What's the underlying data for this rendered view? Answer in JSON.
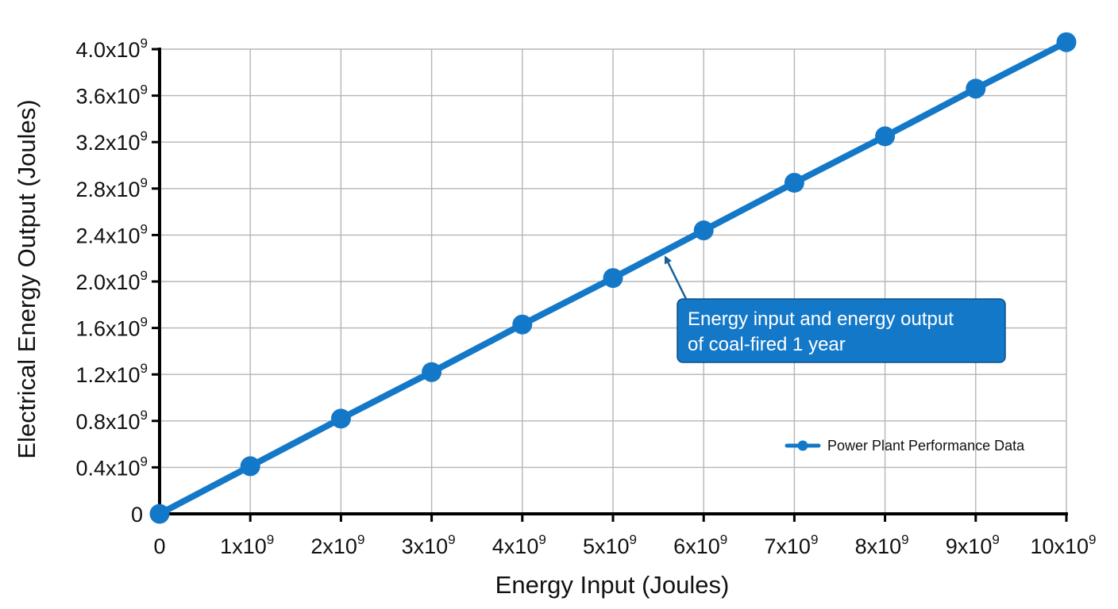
{
  "chart_data": {
    "type": "line",
    "xlabel": "Energy Input (Joules)",
    "ylabel": "Electrical Energy Output (Joules)",
    "xlim": [
      0,
      10000000000
    ],
    "ylim": [
      0,
      4000000000
    ],
    "grid": true,
    "legend_position": "bottom-right",
    "x_ticks": [
      {
        "value": 0,
        "base": "0",
        "exp": ""
      },
      {
        "value": 1000000000,
        "base": "1x10",
        "exp": "9"
      },
      {
        "value": 2000000000,
        "base": "2x10",
        "exp": "9"
      },
      {
        "value": 3000000000,
        "base": "3x10",
        "exp": "9"
      },
      {
        "value": 4000000000,
        "base": "4x10",
        "exp": "9"
      },
      {
        "value": 5000000000,
        "base": "5x10",
        "exp": "9"
      },
      {
        "value": 6000000000,
        "base": "6x10",
        "exp": "9"
      },
      {
        "value": 7000000000,
        "base": "7x10",
        "exp": "9"
      },
      {
        "value": 8000000000,
        "base": "8x10",
        "exp": "9"
      },
      {
        "value": 9000000000,
        "base": "9x10",
        "exp": "9"
      },
      {
        "value": 10000000000,
        "base": "10x10",
        "exp": "9"
      }
    ],
    "y_ticks": [
      {
        "value": 0,
        "base": "0",
        "exp": ""
      },
      {
        "value": 400000000,
        "base": "0.4x10",
        "exp": "9"
      },
      {
        "value": 800000000,
        "base": "0.8x10",
        "exp": "9"
      },
      {
        "value": 1200000000,
        "base": "1.2x10",
        "exp": "9"
      },
      {
        "value": 1600000000,
        "base": "1.6x10",
        "exp": "9"
      },
      {
        "value": 2000000000,
        "base": "2.0x10",
        "exp": "9"
      },
      {
        "value": 2400000000,
        "base": "2.4x10",
        "exp": "9"
      },
      {
        "value": 2800000000,
        "base": "2.8x10",
        "exp": "9"
      },
      {
        "value": 3200000000,
        "base": "3.2x10",
        "exp": "9"
      },
      {
        "value": 3600000000,
        "base": "3.6x10",
        "exp": "9"
      },
      {
        "value": 4000000000,
        "base": "4.0x10",
        "exp": "9"
      }
    ],
    "series": [
      {
        "name": "Power Plant Performance Data",
        "color": "#1478c8",
        "x": [
          0,
          1000000000,
          2000000000,
          3000000000,
          4000000000,
          5000000000,
          6000000000,
          7000000000,
          8000000000,
          9000000000,
          10000000000
        ],
        "y": [
          0,
          410000000,
          820000000,
          1220000000,
          1630000000,
          2030000000,
          2440000000,
          2850000000,
          3250000000,
          3660000000,
          4060000000
        ]
      }
    ],
    "annotation": {
      "lines": [
        "Energy input and energy output",
        "of coal-fired 1 year"
      ],
      "point_x": 5550000000,
      "point_y": 2240000000,
      "box_color": "#1478c8"
    }
  }
}
